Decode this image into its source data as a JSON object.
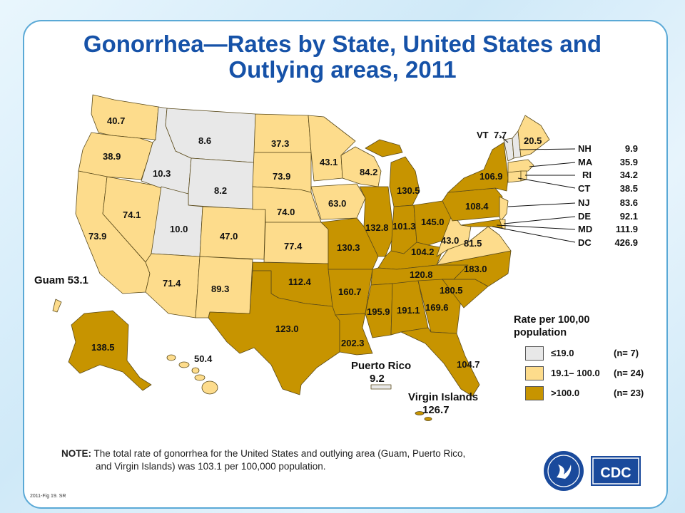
{
  "title_line1": "Gonorrhea—Rates by State, United States and",
  "title_line2": "Outlying areas, 2011",
  "colors": {
    "low": "#e8e8e8",
    "mid": "#fddc8c",
    "high": "#c79400",
    "title": "#1652a8",
    "border": "#5aa9d6"
  },
  "states": {
    "WA": "40.7",
    "OR": "38.9",
    "CA": "73.9",
    "NV": "74.1",
    "ID": "10.3",
    "MT": "8.6",
    "WY": "8.2",
    "UT": "10.0",
    "AZ": "71.4",
    "CO": "47.0",
    "NM": "89.3",
    "ND": "37.3",
    "SD": "73.9",
    "NE": "74.0",
    "KS": "77.4",
    "OK": "112.4",
    "TX": "123.0",
    "MN": "43.1",
    "IA": "63.0",
    "MO": "130.3",
    "AR": "160.7",
    "LA": "202.3",
    "WI": "84.2",
    "IL": "132.8",
    "MI": "130.5",
    "IN": "101.3",
    "OH": "145.0",
    "KY": "104.2",
    "TN": "120.8",
    "MS": "195.9",
    "AL": "191.1",
    "GA": "169.6",
    "FL": "104.7",
    "SC": "180.5",
    "NC": "183.0",
    "VA": "81.5",
    "WV": "43.0",
    "PA": "108.4",
    "NY": "106.9",
    "ME": "20.5",
    "AK": "138.5",
    "HI": "50.4"
  },
  "vt": {
    "label": "VT",
    "value": "7.7"
  },
  "northeast": [
    {
      "state": "NH",
      "value": "9.9"
    },
    {
      "state": "MA",
      "value": "35.9"
    },
    {
      "state": "RI",
      "value": "34.2"
    },
    {
      "state": "CT",
      "value": "38.5"
    },
    {
      "state": "NJ",
      "value": "83.6"
    },
    {
      "state": "DE",
      "value": "92.1"
    },
    {
      "state": "MD",
      "value": "111.9"
    },
    {
      "state": "DC",
      "value": "426.9"
    }
  ],
  "territories": {
    "guam": "Guam 53.1",
    "puerto_rico_name": "Puerto Rico",
    "puerto_rico_value": "9.2",
    "virgin_islands_name": "Virgin Islands",
    "virgin_islands_value": "126.7"
  },
  "legend": {
    "title_line1": "Rate per 100,00",
    "title_line2": "population",
    "items": [
      {
        "range": "≤19.0",
        "count": "(n=  7)",
        "color": "#e8e8e8"
      },
      {
        "range": "19.1– 100.0",
        "count": "(n= 24)",
        "color": "#fddc8c"
      },
      {
        "range": ">100.0",
        "count": "(n= 23)",
        "color": "#c79400"
      }
    ]
  },
  "note": {
    "label": "NOTE:",
    "line1": "The total rate of gonorrhea for the United States and  outlying area (Guam, Puerto Rico,",
    "line2": "and Virgin Islands) was 103.1 per 100,000 population."
  },
  "fig_label": "2011-Fig 19. SR",
  "logo_text": "CDC"
}
